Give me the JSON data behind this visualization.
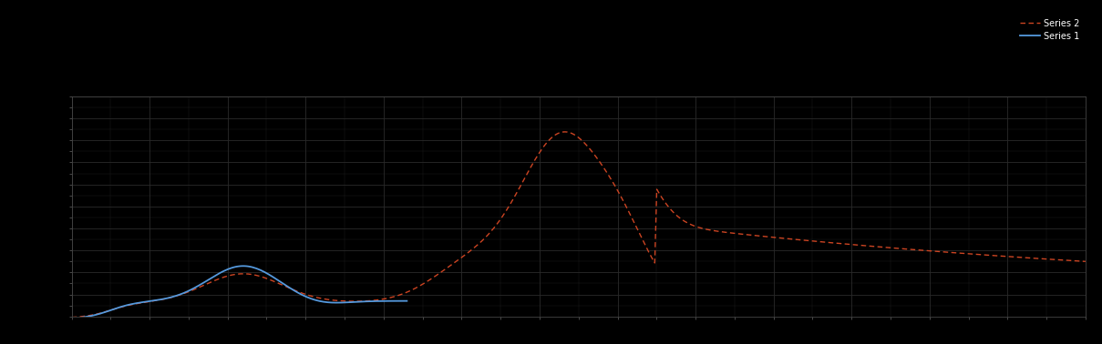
{
  "background_color": "#000000",
  "axes_bg_color": "#000000",
  "grid_color": "#2a2a2a",
  "line1_color": "#5599dd",
  "line2_color": "#cc4422",
  "line1_label": "Series 1",
  "line2_label": "Series 2",
  "title": "",
  "xlabel": "",
  "ylabel": "",
  "xlim": [
    0,
    130
  ],
  "ylim": [
    0,
    10
  ],
  "figsize": [
    12.09,
    3.78
  ],
  "dpi": 100,
  "tick_color": "#666666",
  "spine_color": "#444444",
  "n_xticks_major": 13,
  "n_yticks_major": 10,
  "n_xticks_minor": 2,
  "n_yticks_minor": 2
}
